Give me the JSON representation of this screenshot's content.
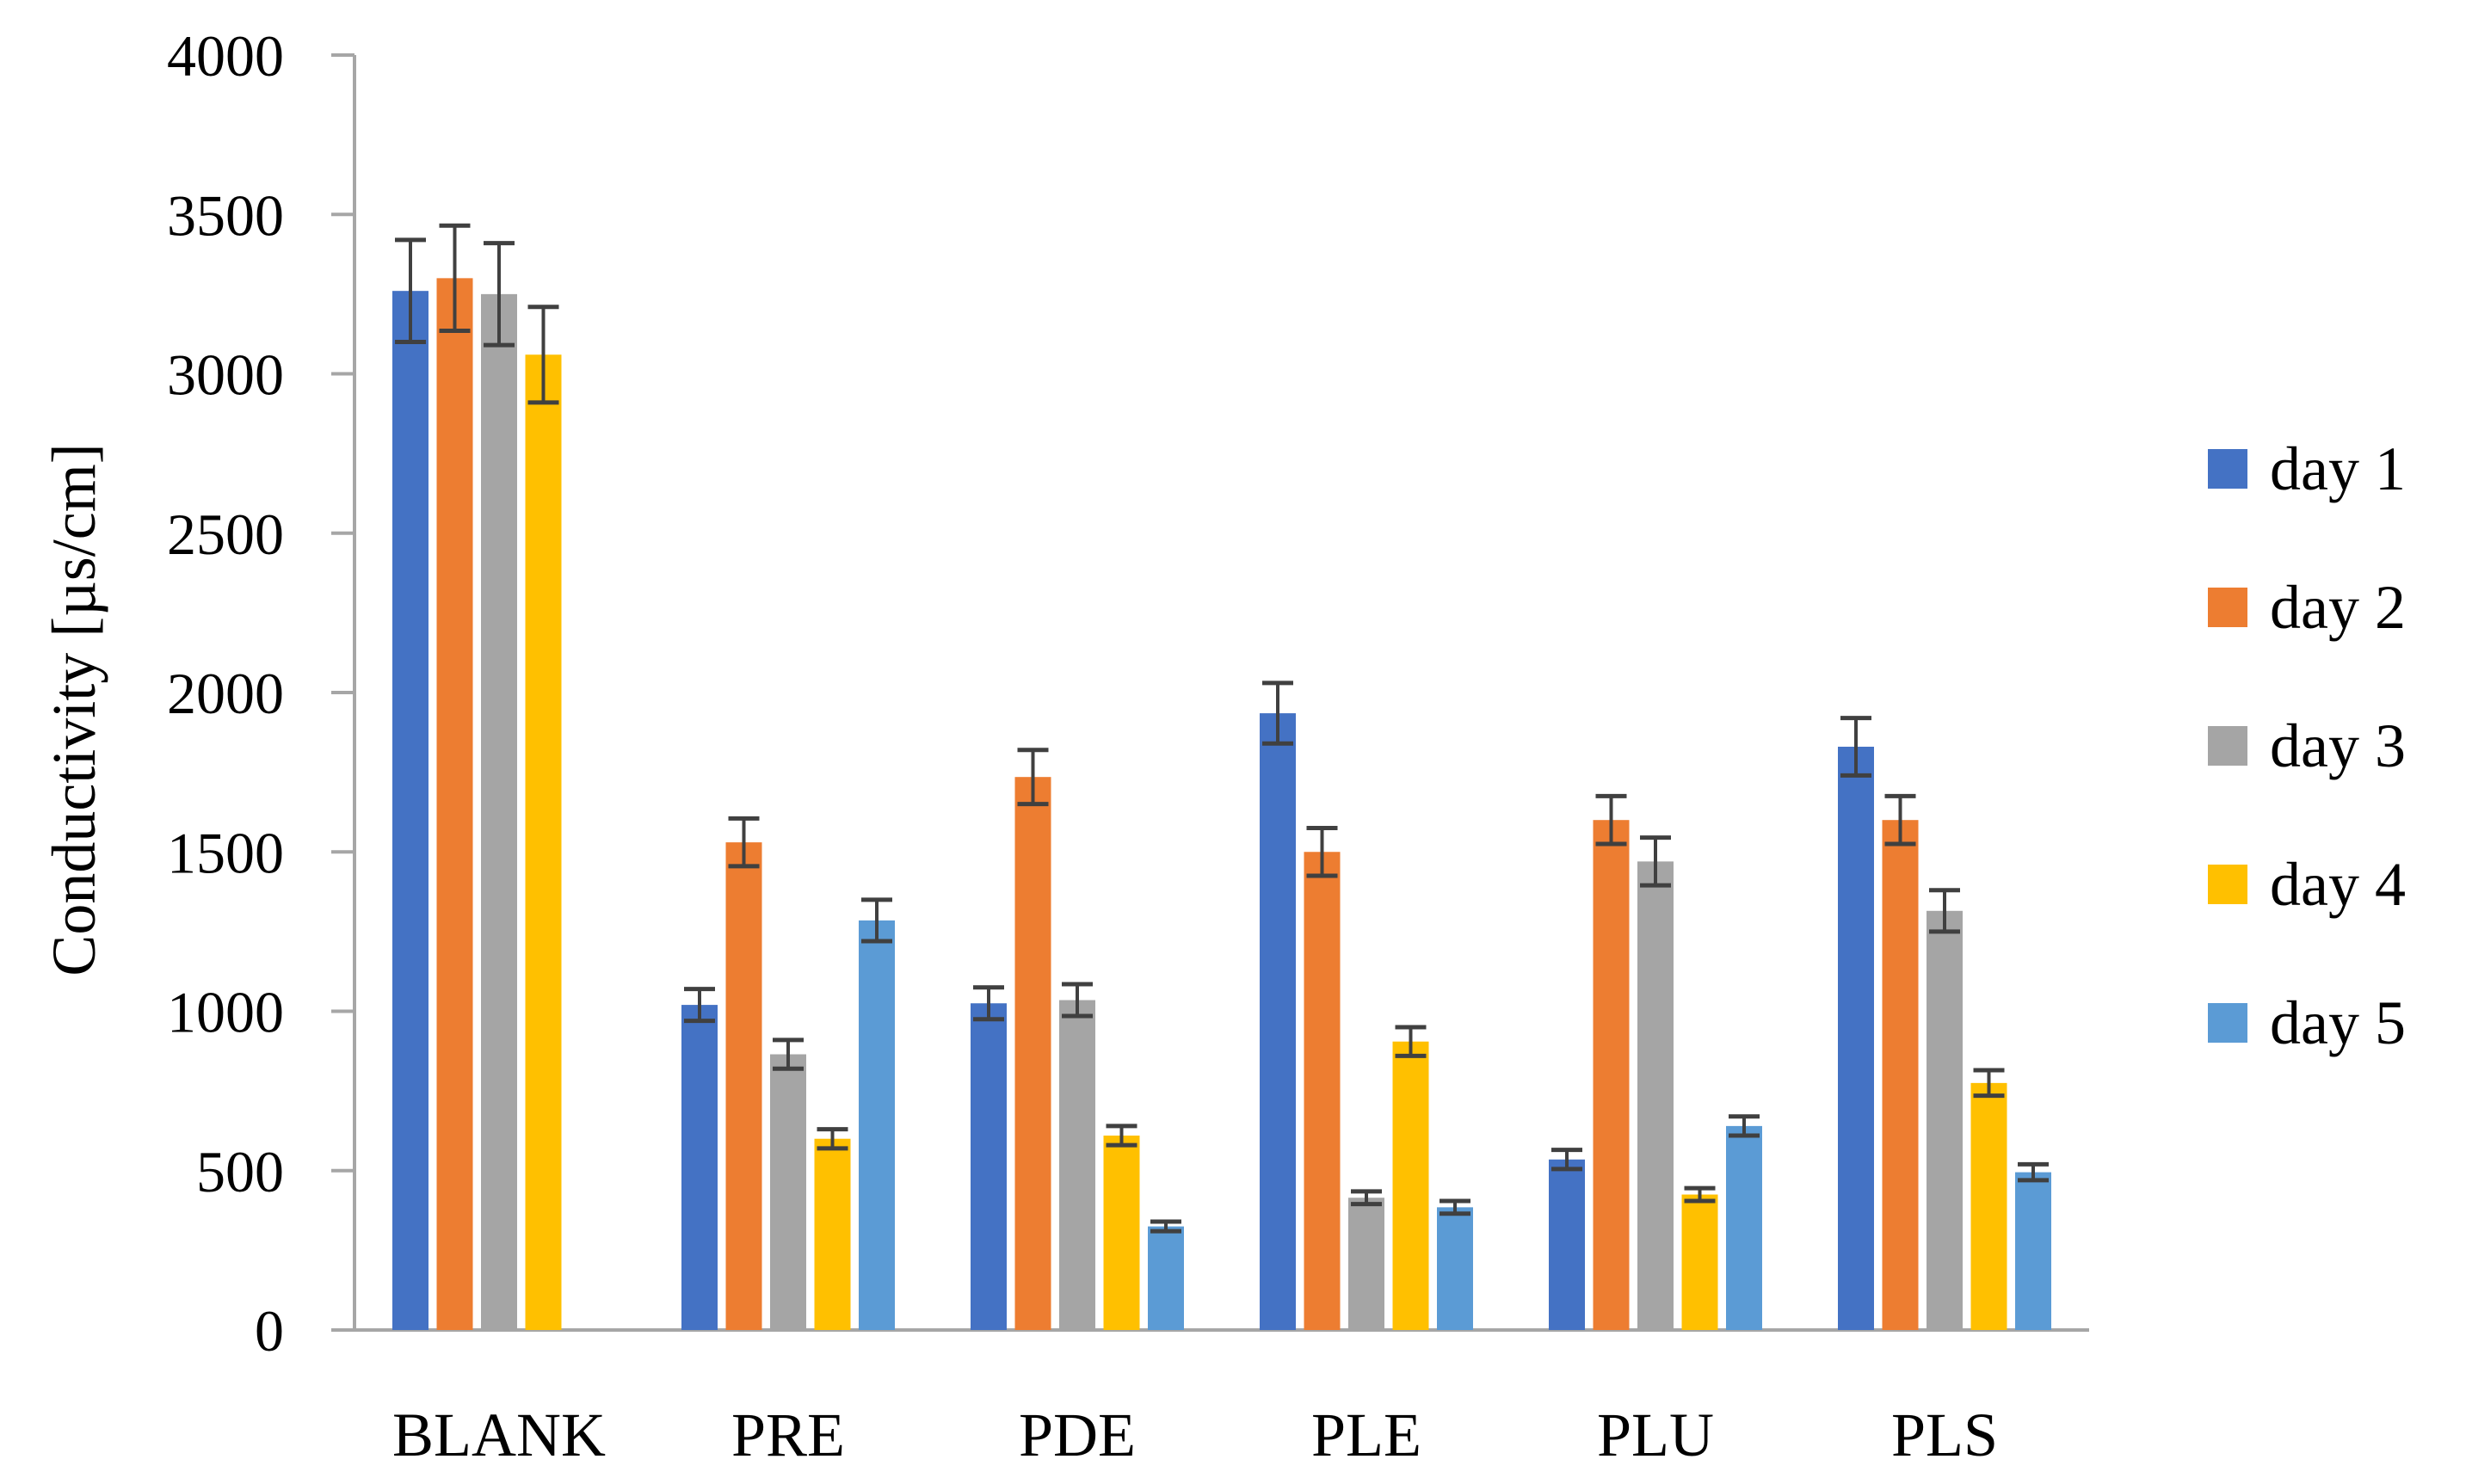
{
  "chart_data": {
    "type": "bar",
    "title": "",
    "xlabel": "",
    "ylabel": "Conductivity [µs/cm]",
    "ylim": [
      0,
      4000
    ],
    "ytick_step": 500,
    "yticks": [
      "0",
      "500",
      "1000",
      "1500",
      "2000",
      "2500",
      "3000",
      "3500",
      "4000"
    ],
    "grid": false,
    "legend_position": "right",
    "categories": [
      "BLANK",
      "PRE",
      "PDE",
      "PLE",
      "PLU",
      "PLS"
    ],
    "series": [
      {
        "name": "day 1",
        "color": "#4472C4",
        "values": [
          3260,
          1020,
          1025,
          1935,
          535,
          1830
        ],
        "errors": [
          160,
          50,
          50,
          95,
          30,
          90
        ]
      },
      {
        "name": "day 2",
        "color": "#ED7D31",
        "values": [
          3300,
          1530,
          1735,
          1500,
          1600,
          1600
        ],
        "errors": [
          165,
          75,
          85,
          75,
          75,
          75
        ]
      },
      {
        "name": "day 3",
        "color": "#A5A5A5",
        "values": [
          3250,
          865,
          1035,
          415,
          1470,
          1315
        ],
        "errors": [
          160,
          45,
          50,
          20,
          75,
          65
        ]
      },
      {
        "name": "day 4",
        "color": "#FFC000",
        "values": [
          3060,
          600,
          610,
          905,
          425,
          775
        ],
        "errors": [
          150,
          30,
          30,
          45,
          20,
          40
        ]
      },
      {
        "name": "day 5",
        "color": "#5B9BD5",
        "values": [
          null,
          1285,
          325,
          385,
          640,
          495
        ],
        "errors": [
          null,
          65,
          15,
          20,
          30,
          25
        ]
      }
    ]
  }
}
